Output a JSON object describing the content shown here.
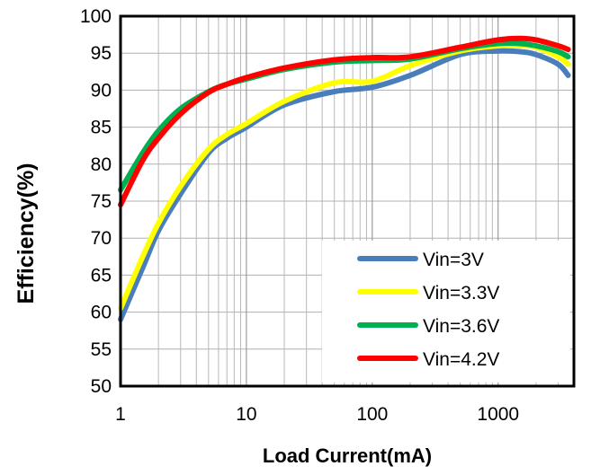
{
  "chart_data": {
    "type": "line",
    "xlabel": "Load Current(mA)",
    "ylabel": "Efficiency(%)",
    "x_scale": "log",
    "xlim": [
      1,
      4000
    ],
    "ylim": [
      50,
      100
    ],
    "x_ticks": [
      1,
      10,
      100,
      1000
    ],
    "x_tick_labels": [
      "1",
      "10",
      "100",
      "1000"
    ],
    "y_ticks": [
      50,
      55,
      60,
      65,
      70,
      75,
      80,
      85,
      90,
      95,
      100
    ],
    "y_tick_labels": [
      "50",
      "55",
      "60",
      "65",
      "70",
      "75",
      "80",
      "85",
      "90",
      "95",
      "100"
    ],
    "grid": true,
    "legend_position": "bottom-right",
    "series": [
      {
        "name": "Vin=3V",
        "color": "#4a7ebb",
        "x": [
          1,
          1.5,
          2,
          3,
          5,
          7,
          10,
          20,
          50,
          100,
          200,
          500,
          1000,
          1500,
          2000,
          3000,
          3600
        ],
        "y": [
          59,
          66,
          71,
          76,
          81.5,
          83.5,
          85,
          88,
          89.8,
          90.4,
          92,
          94.8,
          95.3,
          95.2,
          94.8,
          93.5,
          92
        ]
      },
      {
        "name": "Vin=3.3V",
        "color": "#ffff00",
        "x": [
          1,
          1.5,
          2,
          3,
          5,
          7,
          10,
          20,
          50,
          100,
          200,
          500,
          1000,
          1500,
          2000,
          3000,
          3600
        ],
        "y": [
          60.5,
          67.5,
          72,
          77,
          82,
          84,
          85.5,
          88.5,
          91,
          91.2,
          93.3,
          95.3,
          96,
          96,
          95.8,
          94.5,
          93.5
        ]
      },
      {
        "name": "Vin=3.6V",
        "color": "#00b050",
        "x": [
          1,
          1.5,
          2,
          3,
          5,
          7,
          10,
          20,
          50,
          100,
          200,
          500,
          1000,
          1500,
          2000,
          3000,
          3600
        ],
        "y": [
          76.5,
          81.5,
          84.5,
          87.5,
          89.8,
          90.8,
          91.5,
          92.8,
          93.8,
          94,
          94.2,
          95.6,
          96.3,
          96.3,
          96,
          95.2,
          94.5
        ]
      },
      {
        "name": "Vin=4.2V",
        "color": "#ff0000",
        "x": [
          1,
          1.5,
          2,
          3,
          5,
          7,
          10,
          20,
          50,
          100,
          200,
          500,
          1000,
          1500,
          2000,
          3000,
          3600
        ],
        "y": [
          74.5,
          80.5,
          83.5,
          86.8,
          89.7,
          90.8,
          91.7,
          93,
          94.1,
          94.4,
          94.5,
          95.8,
          96.8,
          97,
          96.8,
          96,
          95.5
        ]
      }
    ]
  }
}
